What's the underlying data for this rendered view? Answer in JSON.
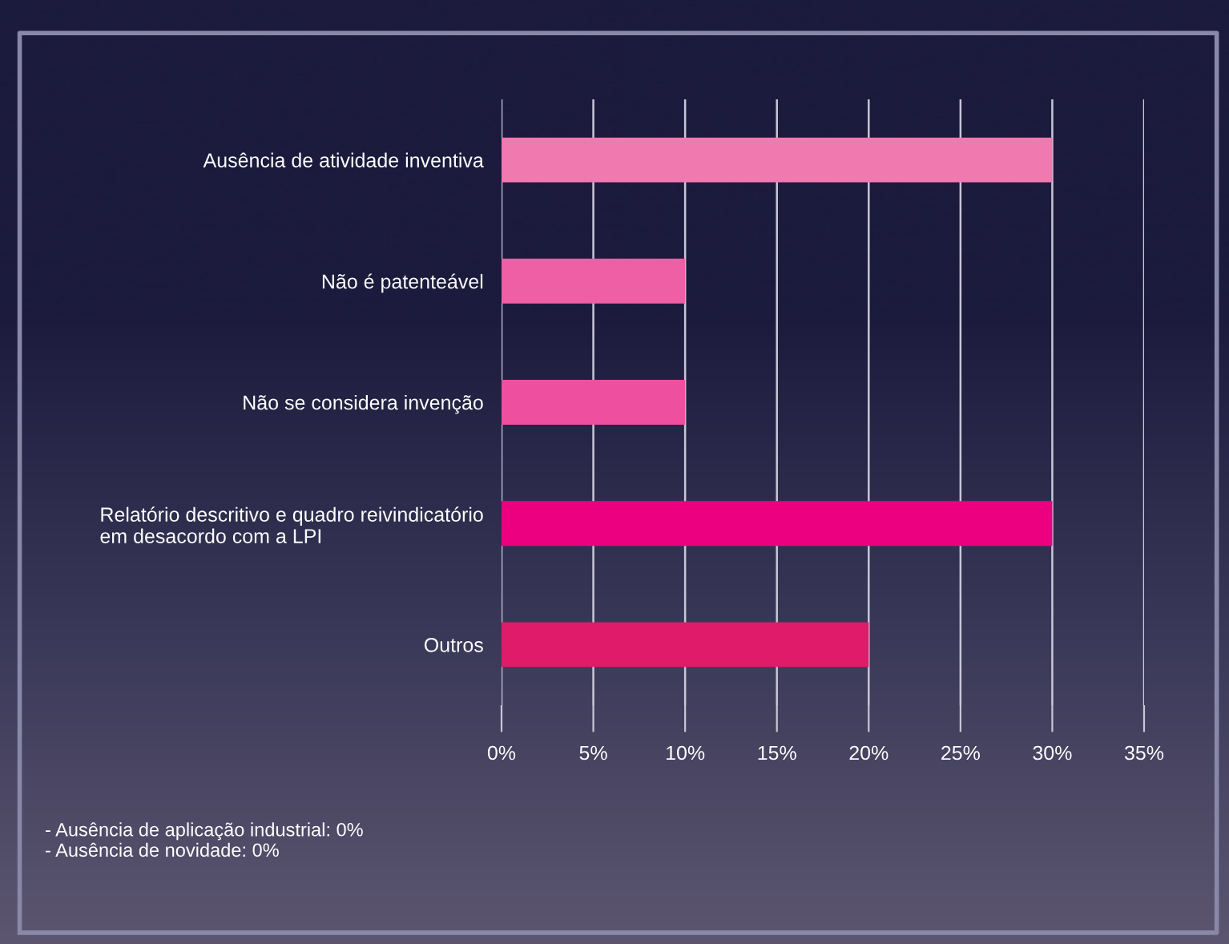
{
  "chart_data": {
    "type": "bar",
    "orientation": "horizontal",
    "categories": [
      "Ausência de atividade inventiva",
      "Não é patenteável",
      "Não se considera invenção",
      "Relatório descritivo e quadro reivindicatório\nem desacordo com a LPI",
      "Outros"
    ],
    "values": [
      30,
      10,
      10,
      30,
      20
    ],
    "colors": [
      "#f07ab0",
      "#ee5fa5",
      "#ee4f9e",
      "#ec0080",
      "#e01b6a"
    ],
    "xlim": [
      0,
      35
    ],
    "xticks": [
      {
        "value": 0,
        "label": "0%"
      },
      {
        "value": 5,
        "label": "5%"
      },
      {
        "value": 10,
        "label": "10%"
      },
      {
        "value": 15,
        "label": "15%"
      },
      {
        "value": 20,
        "label": "20%"
      },
      {
        "value": 25,
        "label": "25%"
      },
      {
        "value": 30,
        "label": "30%"
      },
      {
        "value": 35,
        "label": "35%"
      }
    ],
    "grid": "x",
    "annotations": [
      "- Ausência de aplicação industrial: 0%\n- Ausência de novidade: 0%"
    ]
  }
}
